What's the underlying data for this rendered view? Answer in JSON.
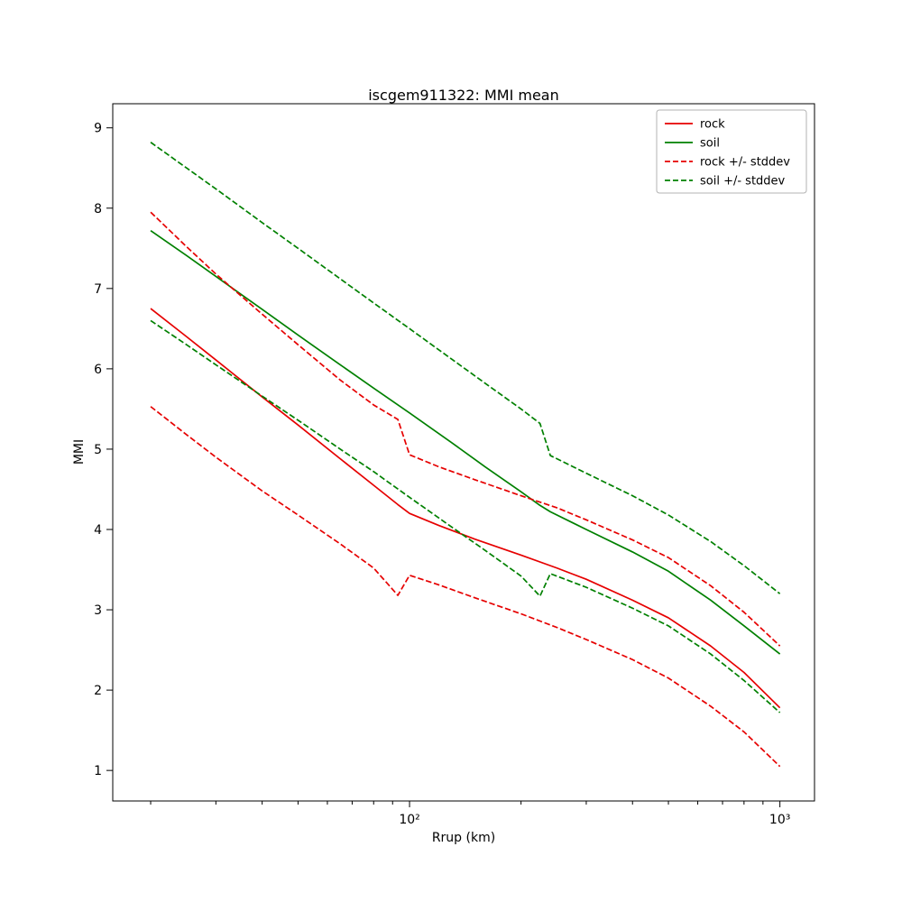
{
  "chart_data": {
    "type": "line",
    "title": "iscgem911322: MMI mean",
    "xlabel": "Rrup (km)",
    "ylabel": "MMI",
    "xscale": "log",
    "xlim": [
      15.8,
      1240
    ],
    "ylim": [
      0.62,
      9.3
    ],
    "yticks": [
      1,
      2,
      3,
      4,
      5,
      6,
      7,
      8,
      9
    ],
    "xticks": [
      100,
      1000
    ],
    "xtick_labels": [
      "10²",
      "10³"
    ],
    "grid": false,
    "legend_position": "upper right",
    "legend": [
      "rock",
      "soil",
      "rock +/- stddev",
      "soil +/- stddev"
    ],
    "colors": {
      "rock": "#e60000",
      "soil": "#008000",
      "frame": "#000000",
      "legend_border": "#b3b3b3"
    },
    "series": [
      {
        "name": "rock",
        "color": "#e60000",
        "style": "solid",
        "x": [
          20,
          25,
          30,
          40,
          50,
          65,
          80,
          93,
          100,
          120,
          150,
          200,
          250,
          300,
          400,
          500,
          650,
          800,
          1000
        ],
        "y": [
          6.75,
          6.4,
          6.11,
          5.65,
          5.3,
          4.88,
          4.55,
          4.31,
          4.2,
          4.05,
          3.88,
          3.68,
          3.52,
          3.38,
          3.12,
          2.9,
          2.55,
          2.22,
          1.78
        ]
      },
      {
        "name": "soil",
        "color": "#008000",
        "style": "solid",
        "x": [
          20,
          25,
          30,
          40,
          50,
          65,
          80,
          100,
          130,
          160,
          200,
          225,
          240,
          300,
          400,
          500,
          650,
          800,
          1000
        ],
        "y": [
          7.72,
          7.41,
          7.15,
          6.74,
          6.42,
          6.05,
          5.76,
          5.45,
          5.08,
          4.78,
          4.47,
          4.3,
          4.22,
          4.0,
          3.72,
          3.48,
          3.12,
          2.8,
          2.45
        ]
      },
      {
        "name": "rock +stddev",
        "color": "#e60000",
        "style": "dashed",
        "x": [
          20,
          25,
          30,
          40,
          50,
          65,
          80,
          93,
          100,
          120,
          150,
          200,
          250,
          300,
          400,
          500,
          650,
          800,
          1000
        ],
        "y": [
          7.95,
          7.52,
          7.18,
          6.68,
          6.3,
          5.86,
          5.55,
          5.37,
          4.93,
          4.78,
          4.62,
          4.42,
          4.27,
          4.12,
          3.87,
          3.65,
          3.3,
          2.97,
          2.55
        ]
      },
      {
        "name": "rock -stddev",
        "color": "#e60000",
        "style": "dashed",
        "x": [
          20,
          25,
          30,
          40,
          50,
          65,
          80,
          93,
          100,
          120,
          150,
          200,
          250,
          300,
          400,
          500,
          650,
          800,
          1000
        ],
        "y": [
          5.53,
          5.18,
          4.9,
          4.48,
          4.18,
          3.82,
          3.52,
          3.18,
          3.43,
          3.31,
          3.15,
          2.95,
          2.78,
          2.63,
          2.38,
          2.15,
          1.8,
          1.48,
          1.05
        ]
      },
      {
        "name": "soil +stddev",
        "color": "#008000",
        "style": "dashed",
        "x": [
          20,
          25,
          30,
          40,
          50,
          65,
          80,
          100,
          130,
          160,
          200,
          225,
          240,
          300,
          400,
          500,
          650,
          800,
          1000
        ],
        "y": [
          8.82,
          8.5,
          8.24,
          7.82,
          7.5,
          7.12,
          6.82,
          6.5,
          6.12,
          5.82,
          5.5,
          5.32,
          4.92,
          4.7,
          4.42,
          4.18,
          3.85,
          3.55,
          3.2
        ]
      },
      {
        "name": "soil -stddev",
        "color": "#008000",
        "style": "dashed",
        "x": [
          20,
          25,
          30,
          40,
          50,
          65,
          80,
          100,
          130,
          160,
          200,
          225,
          240,
          300,
          400,
          500,
          650,
          800,
          1000
        ],
        "y": [
          6.6,
          6.3,
          6.05,
          5.66,
          5.36,
          5.0,
          4.72,
          4.4,
          4.03,
          3.74,
          3.42,
          3.17,
          3.45,
          3.28,
          3.02,
          2.8,
          2.45,
          2.12,
          1.72
        ]
      }
    ]
  }
}
